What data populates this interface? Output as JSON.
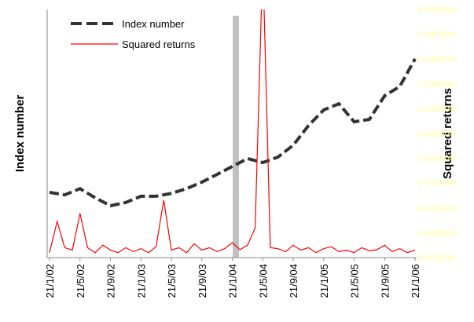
{
  "chart_data": {
    "type": "line",
    "x_tick_labels": [
      "21/1/02",
      "21/5/02",
      "21/9/02",
      "21/1/03",
      "21/5/03",
      "21/9/03",
      "21/1/04",
      "21/5/04",
      "21/9/04",
      "21/1/05",
      "21/5/05",
      "21/9/05",
      "21/1/06"
    ],
    "y_label": "Index number",
    "y2_label": "Squared returns",
    "ylim": [
      0,
      100
    ],
    "y2lim": [
      0,
      0.05
    ],
    "y2ticks": [
      {
        "value": 0,
        "label": "0.00000%"
      },
      {
        "value": 0.005,
        "label": "0.00500%"
      },
      {
        "value": 0.01,
        "label": "0.01000%"
      },
      {
        "value": 0.015,
        "label": "0.01500%"
      },
      {
        "value": 0.02,
        "label": "0.02000%"
      },
      {
        "value": 0.025,
        "label": "0.02500%"
      },
      {
        "value": 0.03,
        "label": "0.03000%"
      },
      {
        "value": 0.035,
        "label": "0.03500%"
      },
      {
        "value": 0.04,
        "label": "0.04000%"
      },
      {
        "value": 0.045,
        "label": "0.04500%"
      },
      {
        "value": 0.05,
        "label": "0.05000%"
      }
    ],
    "series": [
      {
        "name": "Index number",
        "color": "#333333",
        "axis": "y",
        "values": [
          26.3,
          25.3,
          27.8,
          24.1,
          20.9,
          22.2,
          24.7,
          24.7,
          25.9,
          27.8,
          30.4,
          33.5,
          36.7,
          39.9,
          38.3,
          40.5,
          45.3,
          53.2,
          59.5,
          62.0,
          54.7,
          55.7,
          65.2,
          69.0,
          80.1
        ]
      },
      {
        "name": "Squared returns",
        "color": "#ff0000",
        "axis": "y2",
        "values": [
          0.001,
          0.0073,
          0.002,
          0.0015,
          0.0089,
          0.002,
          0.001,
          0.0025,
          0.0015,
          0.001,
          0.002,
          0.0012,
          0.0018,
          0.001,
          0.0022,
          0.0116,
          0.0015,
          0.002,
          0.001,
          0.0028,
          0.0015,
          0.002,
          0.0012,
          0.0018,
          0.003,
          0.0016,
          0.0025,
          0.006,
          0.06,
          0.002,
          0.0018,
          0.0012,
          0.0025,
          0.0015,
          0.002,
          0.001,
          0.0018,
          0.0022,
          0.0012,
          0.0015,
          0.001,
          0.002,
          0.0014,
          0.0016,
          0.0025,
          0.0012,
          0.0018,
          0.001,
          0.0015
        ]
      }
    ]
  }
}
